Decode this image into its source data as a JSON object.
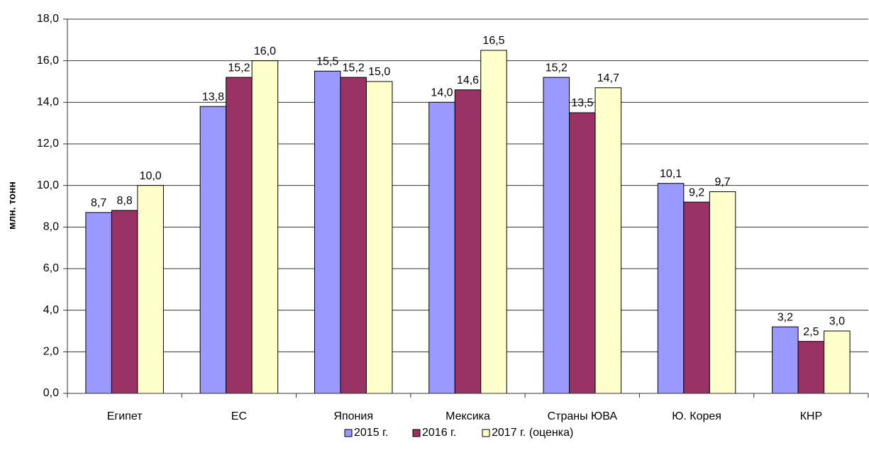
{
  "chart_data": {
    "type": "bar",
    "y_label": "млн. тонн",
    "categories": [
      "Египет",
      "ЕС",
      "Япония",
      "Мексика",
      "Страны ЮВА",
      "Ю. Корея",
      "КНР"
    ],
    "series": [
      {
        "name": "2015 г.",
        "color": "#9999ff",
        "values": [
          8.7,
          13.8,
          15.5,
          14.0,
          15.2,
          10.1,
          3.2
        ],
        "value_labels": [
          "8,7",
          "13,8",
          "15,5",
          "14,0",
          "15,2",
          "10,1",
          "3,2"
        ]
      },
      {
        "name": "2016 г.",
        "color": "#993366",
        "values": [
          8.8,
          15.2,
          15.2,
          14.6,
          13.5,
          9.2,
          2.5
        ],
        "value_labels": [
          "8,8",
          "15,2",
          "15,2",
          "14,6",
          "13,5",
          "9,2",
          "2,5"
        ]
      },
      {
        "name": "2017 г. (оценка)",
        "color": "#ffffcc",
        "values": [
          10.0,
          16.0,
          15.0,
          16.5,
          14.7,
          9.7,
          3.0
        ],
        "value_labels": [
          "10,0",
          "16,0",
          "15,0",
          "16,5",
          "14,7",
          "9,7",
          "3,0"
        ]
      }
    ],
    "ylim": [
      0,
      18
    ],
    "yticks": [
      {
        "value": 0,
        "label": "0,0"
      },
      {
        "value": 2,
        "label": "2,0"
      },
      {
        "value": 4,
        "label": "4,0"
      },
      {
        "value": 6,
        "label": "6,0"
      },
      {
        "value": 8,
        "label": "8,0"
      },
      {
        "value": 10,
        "label": "10,0"
      },
      {
        "value": 12,
        "label": "12,0"
      },
      {
        "value": 14,
        "label": "14,0"
      },
      {
        "value": 16,
        "label": "16,0"
      },
      {
        "value": 18,
        "label": "18,0"
      }
    ],
    "grid": true,
    "legend": "bottom"
  }
}
